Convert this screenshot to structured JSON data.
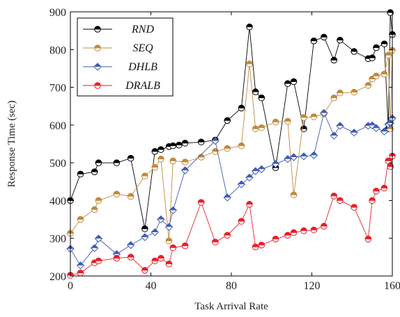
{
  "chart_data": {
    "type": "line",
    "xlabel": "Task Arrival Rate",
    "ylabel": "Response Time (sec)",
    "xlim": [
      0,
      160
    ],
    "ylim": [
      200,
      900
    ],
    "xticks": [
      0,
      40,
      80,
      120,
      160
    ],
    "yticks": [
      200,
      300,
      400,
      500,
      600,
      700,
      800,
      900
    ],
    "grid": false,
    "legend_position": "top-left",
    "series": [
      {
        "name": "RND",
        "color": "#000000",
        "marker": "half-filled-circle",
        "x": [
          0,
          5,
          12,
          14,
          23,
          30,
          37,
          42,
          45,
          49,
          51,
          54,
          57,
          65,
          72,
          78,
          85,
          89,
          92,
          95,
          102,
          108,
          111,
          116,
          121,
          126,
          131,
          134,
          141,
          148,
          150,
          152,
          156,
          158,
          159,
          160
        ],
        "y": [
          400,
          470,
          476,
          500,
          500,
          512,
          325,
          530,
          535,
          543,
          545,
          547,
          552,
          555,
          560,
          612,
          645,
          860,
          688,
          672,
          487,
          710,
          715,
          590,
          823,
          833,
          772,
          825,
          795,
          776,
          778,
          805,
          815,
          590,
          898,
          840
        ]
      },
      {
        "name": "SEQ",
        "color": "#c08a3e",
        "marker": "half-filled-circle",
        "x": [
          0,
          5,
          12,
          14,
          23,
          30,
          37,
          42,
          45,
          49,
          51,
          57,
          65,
          72,
          78,
          85,
          89,
          92,
          95,
          102,
          108,
          111,
          116,
          121,
          126,
          131,
          134,
          141,
          148,
          150,
          152,
          156,
          158,
          159,
          160
        ],
        "y": [
          313,
          350,
          376,
          400,
          417,
          411,
          465,
          488,
          510,
          293,
          505,
          502,
          515,
          530,
          538,
          545,
          762,
          590,
          593,
          608,
          610,
          415,
          620,
          622,
          630,
          672,
          685,
          687,
          705,
          722,
          730,
          735,
          785,
          590,
          798
        ]
      },
      {
        "name": "DHLB",
        "color": "#3e5bb5",
        "marker": "half-filled-diamond",
        "x": [
          0,
          5,
          12,
          14,
          23,
          30,
          37,
          42,
          45,
          49,
          51,
          57,
          72,
          78,
          85,
          89,
          92,
          95,
          102,
          108,
          111,
          116,
          121,
          126,
          131,
          134,
          141,
          148,
          150,
          152,
          156,
          158,
          159,
          160
        ],
        "y": [
          272,
          228,
          274,
          299,
          258,
          282,
          303,
          316,
          350,
          330,
          374,
          480,
          558,
          408,
          443,
          461,
          478,
          483,
          497,
          510,
          515,
          517,
          520,
          632,
          572,
          598,
          580,
          598,
          599,
          592,
          583,
          602,
          605,
          618
        ]
      },
      {
        "name": "DRALB",
        "color": "#e8202a",
        "marker": "half-filled-circle",
        "x": [
          0,
          5,
          12,
          14,
          23,
          30,
          37,
          42,
          45,
          49,
          51,
          57,
          65,
          72,
          78,
          85,
          89,
          92,
          95,
          102,
          108,
          111,
          116,
          121,
          126,
          131,
          134,
          141,
          148,
          150,
          152,
          156,
          158,
          159,
          160
        ],
        "y": [
          202,
          208,
          235,
          240,
          247,
          250,
          215,
          240,
          247,
          232,
          275,
          280,
          395,
          290,
          308,
          345,
          390,
          277,
          282,
          298,
          308,
          315,
          320,
          322,
          332,
          412,
          400,
          382,
          298,
          400,
          425,
          433,
          505,
          490,
          518
        ]
      }
    ]
  }
}
